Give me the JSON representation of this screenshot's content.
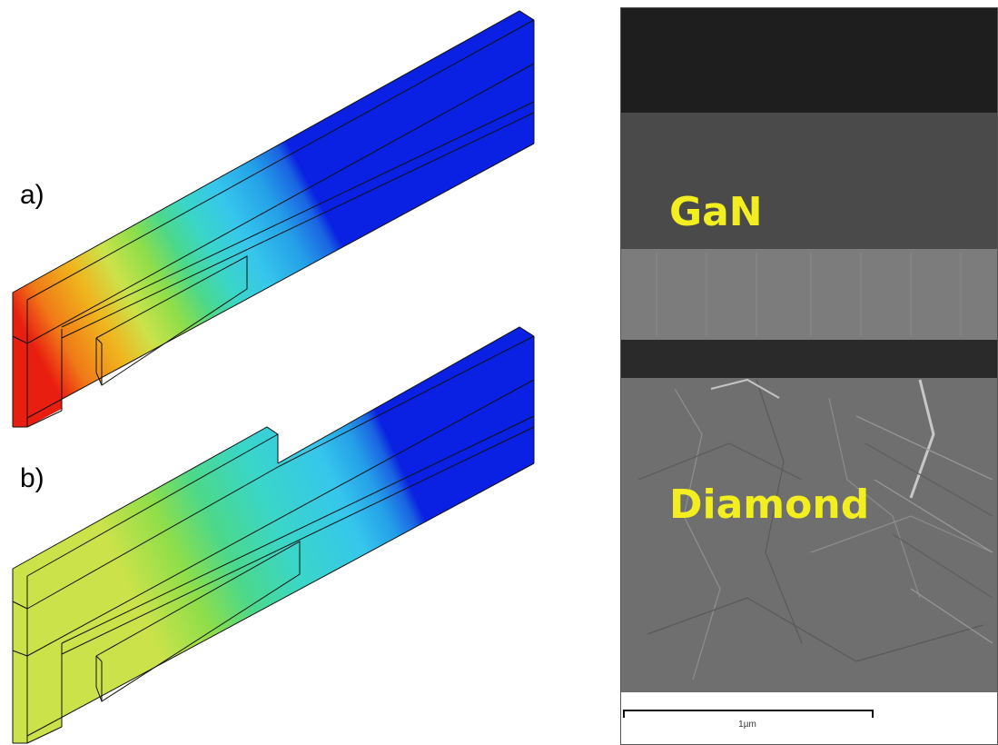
{
  "fea": {
    "label_a": "a)",
    "label_b": "b)",
    "colors": {
      "max": "#e81e10",
      "high": "#f07a18",
      "upper": "#f0b41e",
      "mid_high": "#cce24a",
      "mid": "#8ede4a",
      "mid_low": "#4cd88a",
      "low_mid": "#3ad6c8",
      "low": "#36c6ec",
      "lower": "#24a0e8",
      "min_high": "#1a64e2",
      "min": "#0a20e2",
      "edge": "#111111"
    }
  },
  "sem": {
    "layer_top": "GaN",
    "layer_bottom": "Diamond",
    "scale_bar": "1µm",
    "colors": {
      "label": "#f2ee20",
      "coating": "#1e1e1e",
      "gan": "#4a4a4a",
      "interface": "#7c7c7c",
      "diamond": "#6f6f6f"
    }
  }
}
